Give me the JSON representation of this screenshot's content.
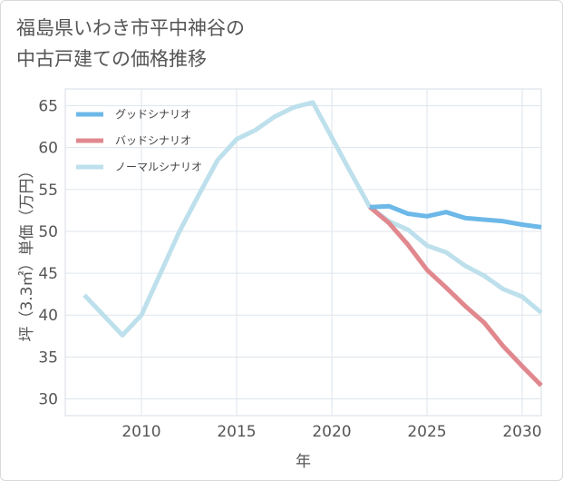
{
  "title_line1": "福島県いわき市平中神谷の",
  "title_line2": "中古戸建ての価格推移",
  "chart_data": {
    "type": "line",
    "title": "福島県いわき市平中神谷の中古戸建ての価格推移",
    "xlabel": "年",
    "ylabel": "坪（3.3㎡）単価（万円）",
    "xlim": [
      2006,
      2031
    ],
    "ylim": [
      28,
      67
    ],
    "xticks": [
      2010,
      2015,
      2020,
      2025,
      2030
    ],
    "yticks": [
      30,
      35,
      40,
      45,
      50,
      55,
      60,
      65
    ],
    "grid": true,
    "legend_position": "top-left",
    "series": [
      {
        "name": "グッドシナリオ",
        "color": "#6cb8e8",
        "x": [
          2022,
          2023,
          2024,
          2025,
          2026,
          2027,
          2028,
          2029,
          2030,
          2031
        ],
        "values": [
          52.9,
          53.0,
          52.1,
          51.8,
          52.3,
          51.6,
          51.4,
          51.2,
          50.8,
          50.5
        ]
      },
      {
        "name": "バッドシナリオ",
        "color": "#e0888e",
        "x": [
          2022,
          2023,
          2024,
          2025,
          2026,
          2027,
          2028,
          2029,
          2030,
          2031
        ],
        "values": [
          52.9,
          51.0,
          48.4,
          45.4,
          43.3,
          41.1,
          39.1,
          36.3,
          33.9,
          31.6
        ]
      },
      {
        "name": "ノーマルシナリオ",
        "color": "#bde0ec",
        "x": [
          2007,
          2008,
          2009,
          2010,
          2011,
          2012,
          2013,
          2014,
          2015,
          2016,
          2017,
          2018,
          2019,
          2020,
          2021,
          2022,
          2023,
          2024,
          2025,
          2026,
          2027,
          2028,
          2029,
          2030,
          2031
        ],
        "values": [
          42.4,
          40.0,
          37.6,
          40.0,
          45.0,
          50.0,
          54.3,
          58.5,
          61.0,
          62.1,
          63.7,
          64.8,
          65.4,
          61.2,
          57.0,
          52.9,
          51.2,
          50.2,
          48.3,
          47.5,
          45.9,
          44.7,
          43.1,
          42.2,
          40.3
        ]
      }
    ]
  }
}
